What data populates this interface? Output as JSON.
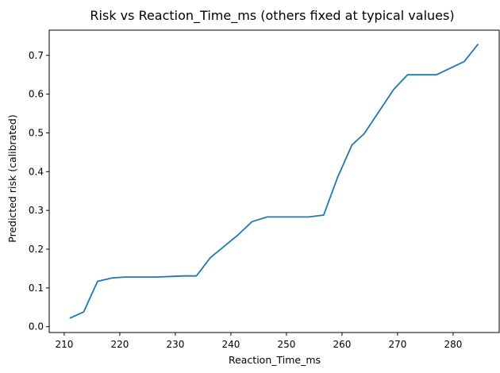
{
  "chart_data": {
    "type": "line",
    "title": "Risk vs Reaction_Time_ms (others fixed at typical values)",
    "xlabel": "Reaction_Time_ms",
    "ylabel": "Predicted risk (calibrated)",
    "xlim": [
      207.3,
      288.3
    ],
    "ylim": [
      -0.015,
      0.765
    ],
    "xticks": [
      210,
      220,
      230,
      240,
      250,
      260,
      270,
      280
    ],
    "xtick_labels": [
      "210",
      "220",
      "230",
      "240",
      "250",
      "260",
      "270",
      "280"
    ],
    "yticks": [
      0.0,
      0.1,
      0.2,
      0.3,
      0.4,
      0.5,
      0.6,
      0.7
    ],
    "ytick_labels": [
      "0.0",
      "0.1",
      "0.2",
      "0.3",
      "0.4",
      "0.5",
      "0.6",
      "0.7"
    ],
    "grid": false,
    "legend": false,
    "colors": {
      "line": "#1f77b4",
      "axes": "#000000"
    },
    "series": [
      {
        "x": [
          211.0,
          213.5,
          216.0,
          218.7,
          221.0,
          226.5,
          231.5,
          233.8,
          236.3,
          241.3,
          243.8,
          246.5,
          254.0,
          256.7,
          259.2,
          261.8,
          264.0,
          269.3,
          271.8,
          277.0,
          282.0,
          284.5
        ],
        "y": [
          0.022,
          0.038,
          0.117,
          0.126,
          0.128,
          0.128,
          0.131,
          0.131,
          0.178,
          0.237,
          0.271,
          0.283,
          0.283,
          0.288,
          0.385,
          0.469,
          0.498,
          0.612,
          0.65,
          0.65,
          0.684,
          0.729
        ]
      }
    ]
  }
}
